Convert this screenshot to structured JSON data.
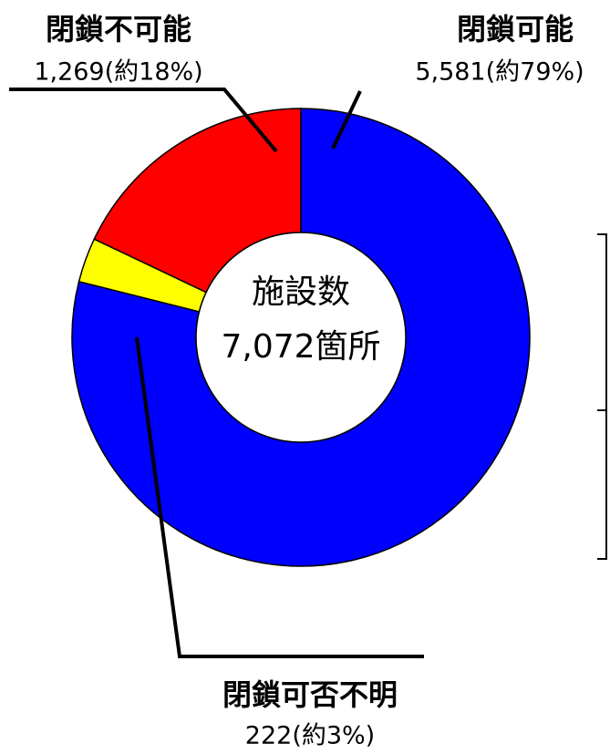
{
  "chart_data": {
    "type": "pie",
    "donut": true,
    "categories": [
      "閉鎖可能",
      "閉鎖可否不明",
      "閉鎖不可能"
    ],
    "values": [
      5581,
      222,
      1269
    ],
    "value_labels": [
      "5,581(約79%)",
      "222(約3%)",
      "1,269(約18%)"
    ],
    "colors": [
      "#0000ff",
      "#ffff00",
      "#ff0000"
    ],
    "center_title": "施設数",
    "center_label": "7,072箇所"
  }
}
